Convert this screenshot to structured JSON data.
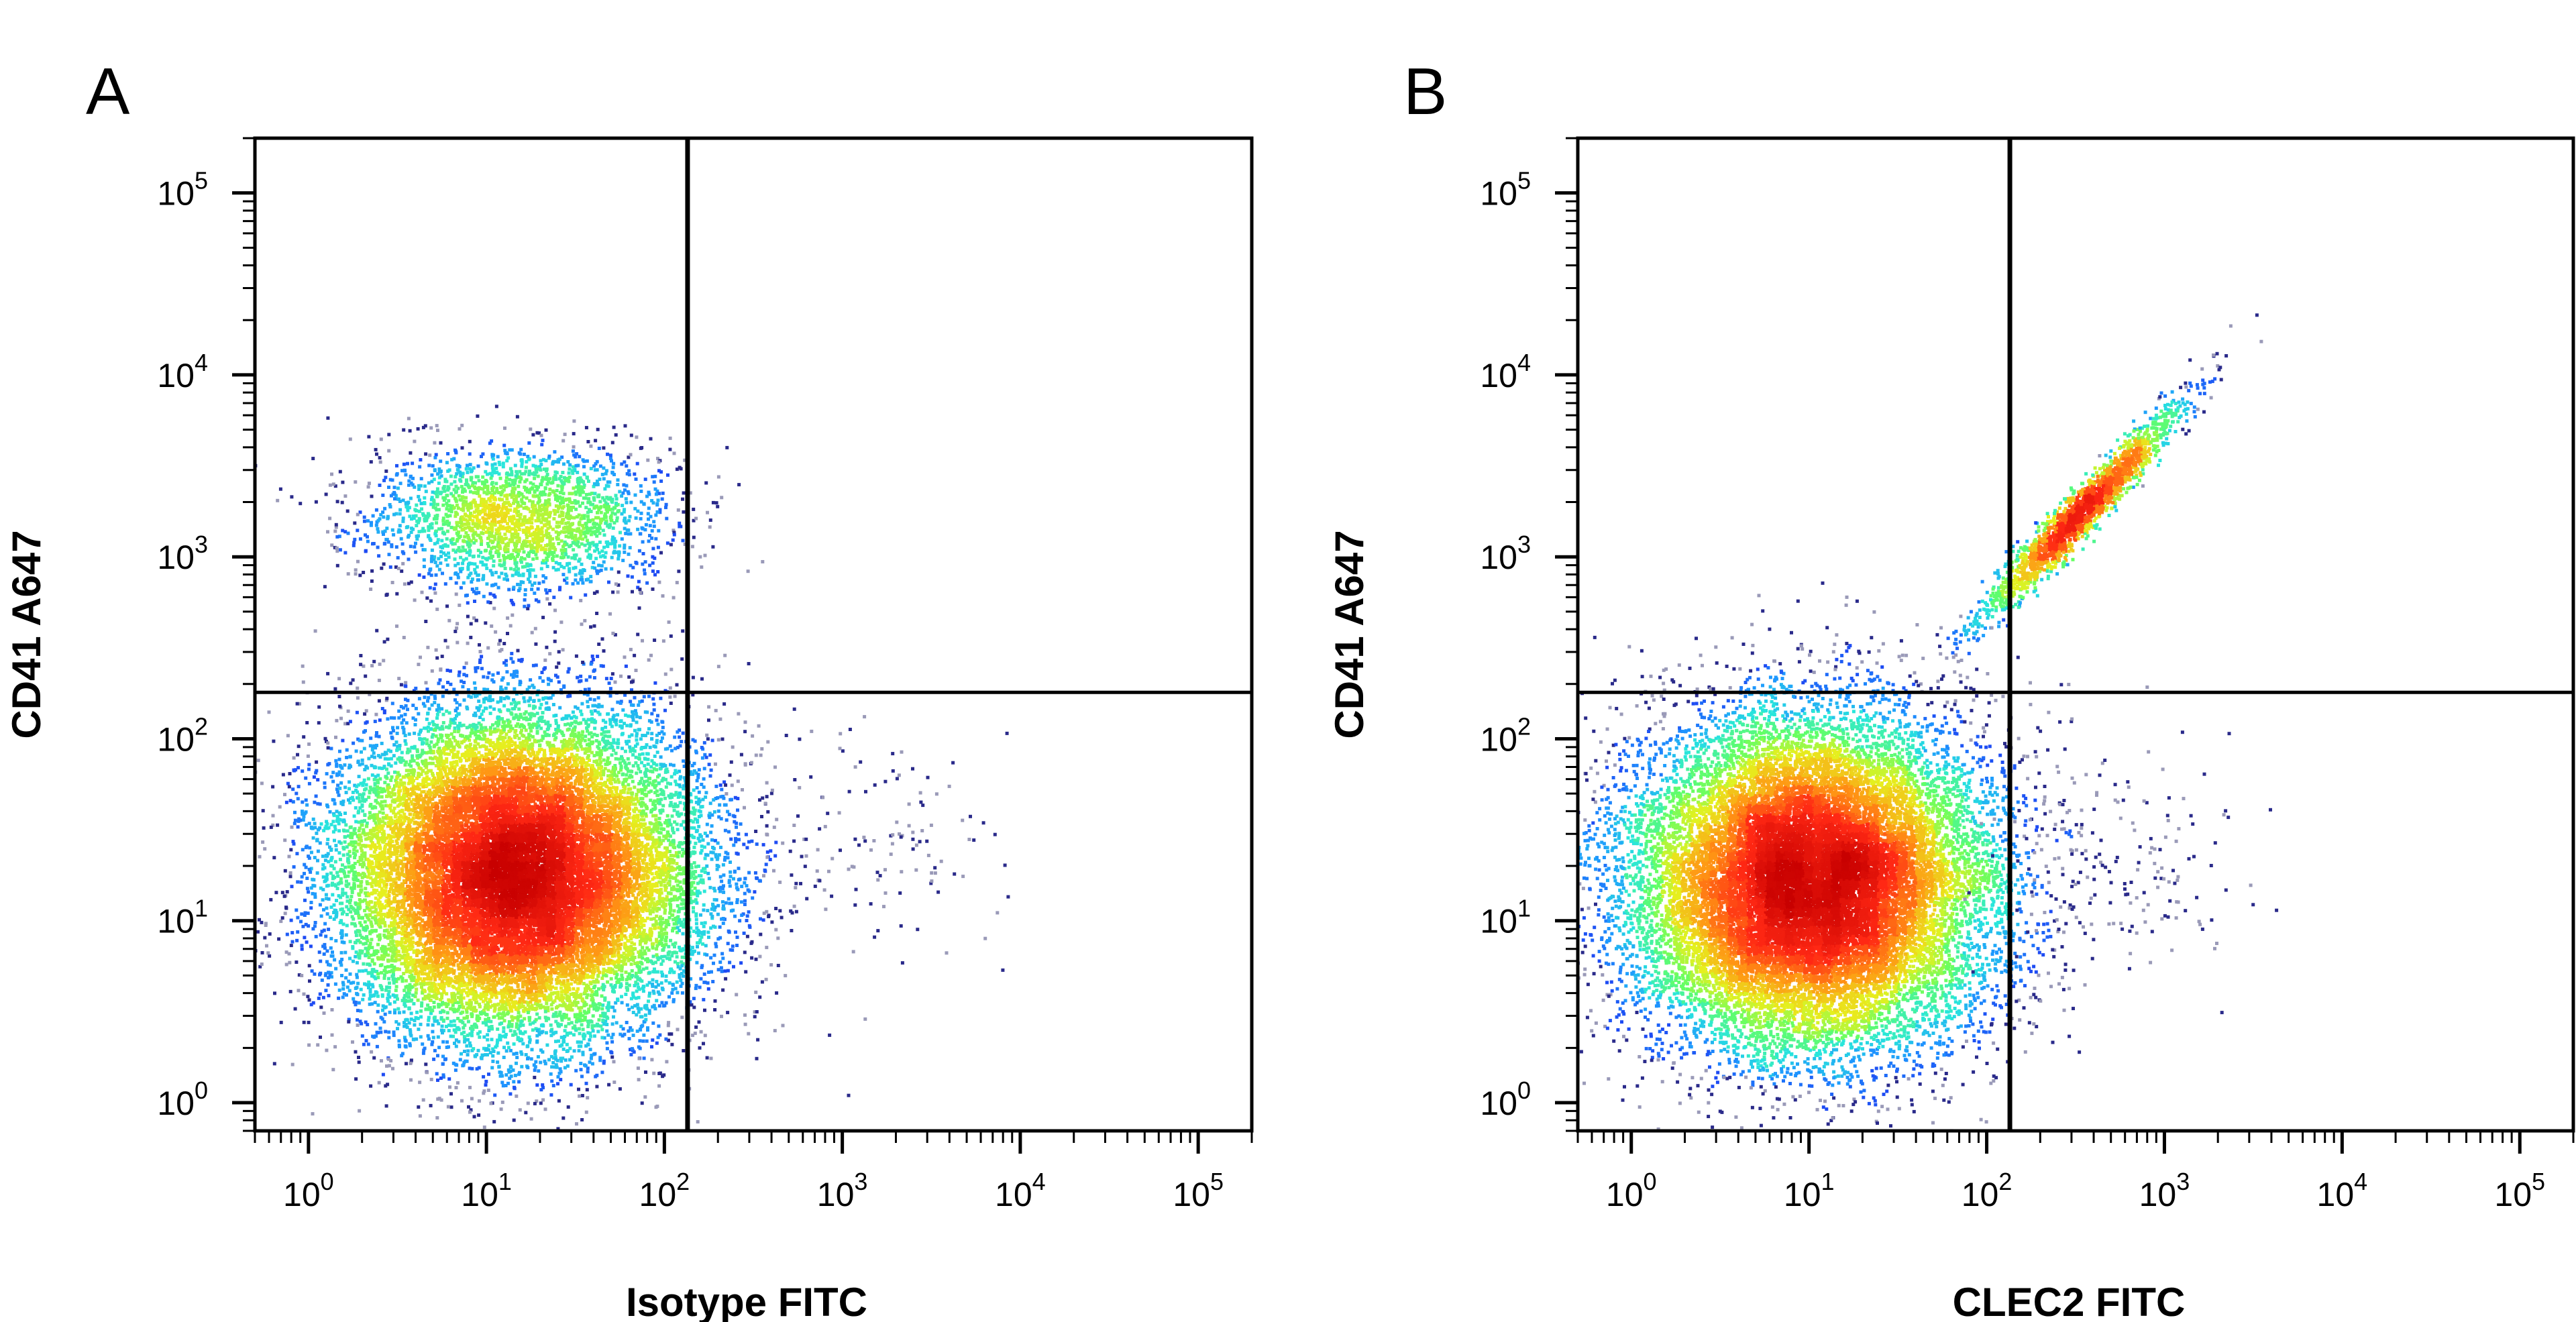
{
  "figure": {
    "background": "#ffffff",
    "axis_color": "#000000",
    "density_colormap": [
      "#1a1aa0",
      "#1e3cf0",
      "#1e96ff",
      "#28e6dc",
      "#64ff64",
      "#e6f01e",
      "#ff9614",
      "#ff2814",
      "#c80000"
    ]
  },
  "chart_data": [
    {
      "type": "scatter",
      "subtype": "flow-cytometry-density-dot-plot",
      "panel_label": "A",
      "title": "",
      "xlabel": "Isotype FITC",
      "ylabel": "CD41 A647",
      "xscale": "log",
      "yscale": "log",
      "xlim": [
        0.5,
        200000
      ],
      "ylim": [
        0.7,
        200000
      ],
      "x_ticks": [
        1,
        10,
        100,
        1000,
        10000,
        100000
      ],
      "x_tick_labels": [
        {
          "base": "10",
          "exp": "0"
        },
        {
          "base": "10",
          "exp": "1"
        },
        {
          "base": "10",
          "exp": "2"
        },
        {
          "base": "10",
          "exp": "3"
        },
        {
          "base": "10",
          "exp": "4"
        },
        {
          "base": "10",
          "exp": "5"
        }
      ],
      "y_ticks": [
        1,
        10,
        100,
        1000,
        10000,
        100000
      ],
      "y_tick_labels": [
        {
          "base": "10",
          "exp": "0"
        },
        {
          "base": "10",
          "exp": "1"
        },
        {
          "base": "10",
          "exp": "2"
        },
        {
          "base": "10",
          "exp": "3"
        },
        {
          "base": "10",
          "exp": "4"
        },
        {
          "base": "10",
          "exp": "5"
        }
      ],
      "quadrant_gate": {
        "x": 135,
        "y": 180
      },
      "grid": false,
      "populations": [
        {
          "center": [
            15,
            18
          ],
          "spread_decades": [
            0.5,
            0.45
          ],
          "shape": "round",
          "relative_count": 1.0
        },
        {
          "center": [
            15,
            1600
          ],
          "spread_decades": [
            0.42,
            0.2
          ],
          "shape": "oval",
          "relative_count": 0.12
        },
        {
          "center": [
            1500,
            25
          ],
          "spread_decades": [
            0.35,
            0.3
          ],
          "shape": "sparse",
          "relative_count": 0.006
        }
      ]
    },
    {
      "type": "scatter",
      "subtype": "flow-cytometry-density-dot-plot",
      "panel_label": "B",
      "title": "",
      "xlabel": "CLEC2 FITC",
      "ylabel": "CD41 A647",
      "xscale": "log",
      "yscale": "log",
      "xlim": [
        0.5,
        200000
      ],
      "ylim": [
        0.7,
        200000
      ],
      "x_ticks": [
        1,
        10,
        100,
        1000,
        10000,
        100000
      ],
      "x_tick_labels": [
        {
          "base": "10",
          "exp": "0"
        },
        {
          "base": "10",
          "exp": "1"
        },
        {
          "base": "10",
          "exp": "2"
        },
        {
          "base": "10",
          "exp": "3"
        },
        {
          "base": "10",
          "exp": "4"
        },
        {
          "base": "10",
          "exp": "5"
        }
      ],
      "y_ticks": [
        1,
        10,
        100,
        1000,
        10000,
        100000
      ],
      "y_tick_labels": [
        {
          "base": "10",
          "exp": "0"
        },
        {
          "base": "10",
          "exp": "1"
        },
        {
          "base": "10",
          "exp": "2"
        },
        {
          "base": "10",
          "exp": "3"
        },
        {
          "base": "10",
          "exp": "4"
        },
        {
          "base": "10",
          "exp": "5"
        }
      ],
      "quadrant_gate": {
        "x": 135,
        "y": 180
      },
      "grid": false,
      "populations": [
        {
          "center": [
            10,
            16
          ],
          "spread_decades": [
            0.5,
            0.45
          ],
          "shape": "round",
          "relative_count": 1.0
        },
        {
          "center": [
            350,
            1800
          ],
          "spread_decades": [
            0.28,
            0.05
          ],
          "shape": "diagonal",
          "relative_count": 0.1
        },
        {
          "center": [
            600,
            20
          ],
          "spread_decades": [
            0.4,
            0.35
          ],
          "shape": "sparse",
          "relative_count": 0.008
        }
      ]
    }
  ]
}
